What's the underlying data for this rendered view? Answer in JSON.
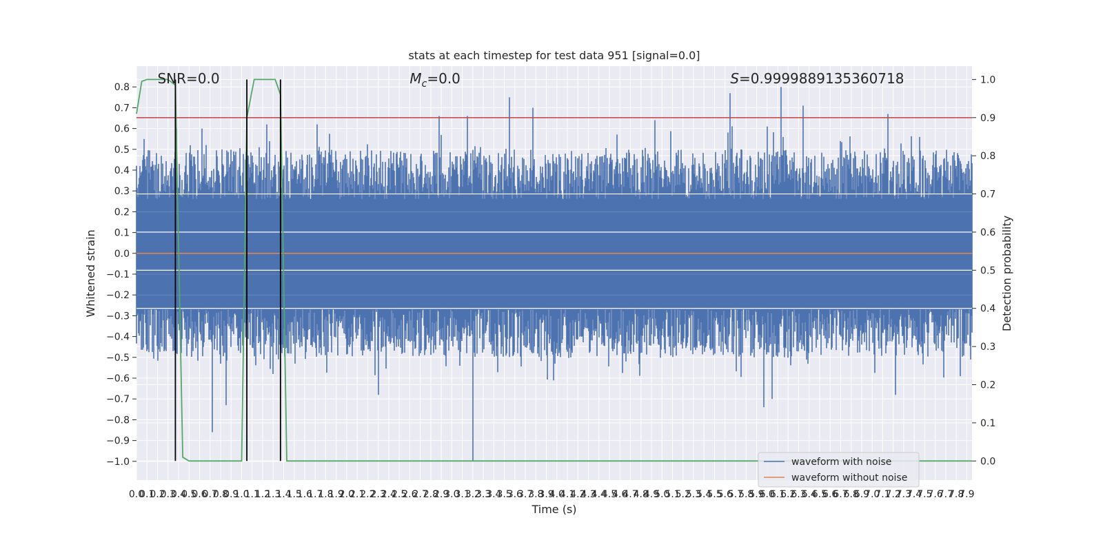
{
  "title": "stats at each timestep for test data 951 [signal=0.0]",
  "annotations": {
    "snr": "SNR=0.0",
    "mc_symbol": "M",
    "mc_subscript": "c",
    "mc_value": "=0.0",
    "s_symbol": "S",
    "s_value": "=0.9999889135360718"
  },
  "legend": {
    "noise_label": "waveform with noise",
    "clean_label": "waveform without noise"
  },
  "colors": {
    "axes_bg": "#eaeaf2",
    "grid": "#ffffff",
    "noise": "#4c72b0",
    "clean": "#dd8452",
    "probability": "#55a868",
    "threshold": "#c44e52",
    "marker": "#000000"
  },
  "chart_data": {
    "type": "line",
    "title": "stats at each timestep for test data 951 [signal=0.0]",
    "xlabel": "Time (s)",
    "ylabel": "Whitened strain",
    "y2label": "Detection probability",
    "xlim": [
      0.0,
      7.95
    ],
    "ylim": [
      -1.09,
      0.9
    ],
    "y2lim": [
      -0.05,
      1.035
    ],
    "grid": true,
    "legend_location": "lower-right",
    "x_ticks": [
      "0.0",
      "0.1",
      "0.2",
      "0.3",
      "0.4",
      "0.5",
      "0.6",
      "0.7",
      "0.8",
      "0.9",
      "1.0",
      "1.1",
      "1.2",
      "1.3",
      "1.4",
      "1.5",
      "1.6",
      "1.7",
      "1.8",
      "1.9",
      "2.0",
      "2.1",
      "2.2",
      "2.3",
      "2.4",
      "2.5",
      "2.6",
      "2.7",
      "2.8",
      "2.9",
      "3.0",
      "3.1",
      "3.2",
      "3.3",
      "3.4",
      "3.5",
      "3.6",
      "3.7",
      "3.8",
      "3.9",
      "4.0",
      "4.1",
      "4.2",
      "4.3",
      "4.4",
      "4.5",
      "4.6",
      "4.7",
      "4.8",
      "4.9",
      "5.0",
      "5.1",
      "5.2",
      "5.3",
      "5.4",
      "5.5",
      "5.6",
      "5.7",
      "5.8",
      "5.9",
      "6.0",
      "6.1",
      "6.2",
      "6.3",
      "6.4",
      "6.5",
      "6.6",
      "6.7",
      "6.8",
      "6.9",
      "7.0",
      "7.1",
      "7.2",
      "7.3",
      "7.4",
      "7.5",
      "7.6",
      "7.7",
      "7.8",
      "7.9"
    ],
    "y_ticks": [
      "0.8",
      "0.7",
      "0.6",
      "0.5",
      "0.4",
      "0.3",
      "0.2",
      "0.1",
      "0.0",
      "−0.1",
      "−0.2",
      "−0.3",
      "−0.4",
      "−0.5",
      "−0.6",
      "−0.7",
      "−0.8",
      "−0.9",
      "−1.0"
    ],
    "y2_ticks": [
      "1.0",
      "0.9",
      "0.8",
      "0.7",
      "0.6",
      "0.5",
      "0.4",
      "0.3",
      "0.2",
      "0.1",
      "0.0"
    ],
    "series": [
      {
        "name": "waveform with noise",
        "kind": "noise",
        "envelope_note": "dense whitened noise, typical amplitude about ±0.4",
        "spikes": [
          [
            0.07,
            0.55
          ],
          [
            0.38,
            0.6
          ],
          [
            0.62,
            0.6
          ],
          [
            1.24,
            0.62
          ],
          [
            1.72,
            0.62
          ],
          [
            2.88,
            0.66
          ],
          [
            3.15,
            0.66
          ],
          [
            3.55,
            0.75
          ],
          [
            3.77,
            0.7
          ],
          [
            4.93,
            0.64
          ],
          [
            5.65,
            0.77
          ],
          [
            6.0,
            0.61
          ],
          [
            6.13,
            0.8
          ],
          [
            6.34,
            0.71
          ],
          [
            7.15,
            0.67
          ],
          [
            0.72,
            -0.86
          ],
          [
            0.85,
            -0.73
          ],
          [
            1.3,
            -0.58
          ],
          [
            2.3,
            -0.68
          ],
          [
            3.2,
            -1.0
          ],
          [
            5.97,
            -0.74
          ],
          [
            6.05,
            -0.7
          ],
          [
            7.22,
            -0.68
          ]
        ]
      },
      {
        "name": "waveform without noise",
        "kind": "flat",
        "x": [
          0.0,
          7.95
        ],
        "y": [
          0.0,
          0.0
        ]
      },
      {
        "kind": "probability",
        "axis": "right",
        "x": [
          0.0,
          0.05,
          0.1,
          0.2,
          0.3,
          0.37,
          0.44,
          0.5,
          0.7,
          0.9,
          1.0,
          1.05,
          1.12,
          1.32,
          1.37,
          1.43,
          1.5,
          7.95
        ],
        "y": [
          0.91,
          0.995,
          1.0,
          1.0,
          1.0,
          0.985,
          0.01,
          0.0,
          0.0,
          0.0,
          0.0,
          0.9,
          1.0,
          1.0,
          0.96,
          0.0,
          0.0,
          0.0
        ]
      },
      {
        "kind": "threshold",
        "axis": "right",
        "x": [
          0.0,
          7.95
        ],
        "y": [
          0.9,
          0.9
        ]
      }
    ],
    "markers_x": [
      0.37,
      1.05,
      1.37
    ],
    "annotation_positions_x": [
      0.2,
      2.6,
      5.65
    ]
  }
}
